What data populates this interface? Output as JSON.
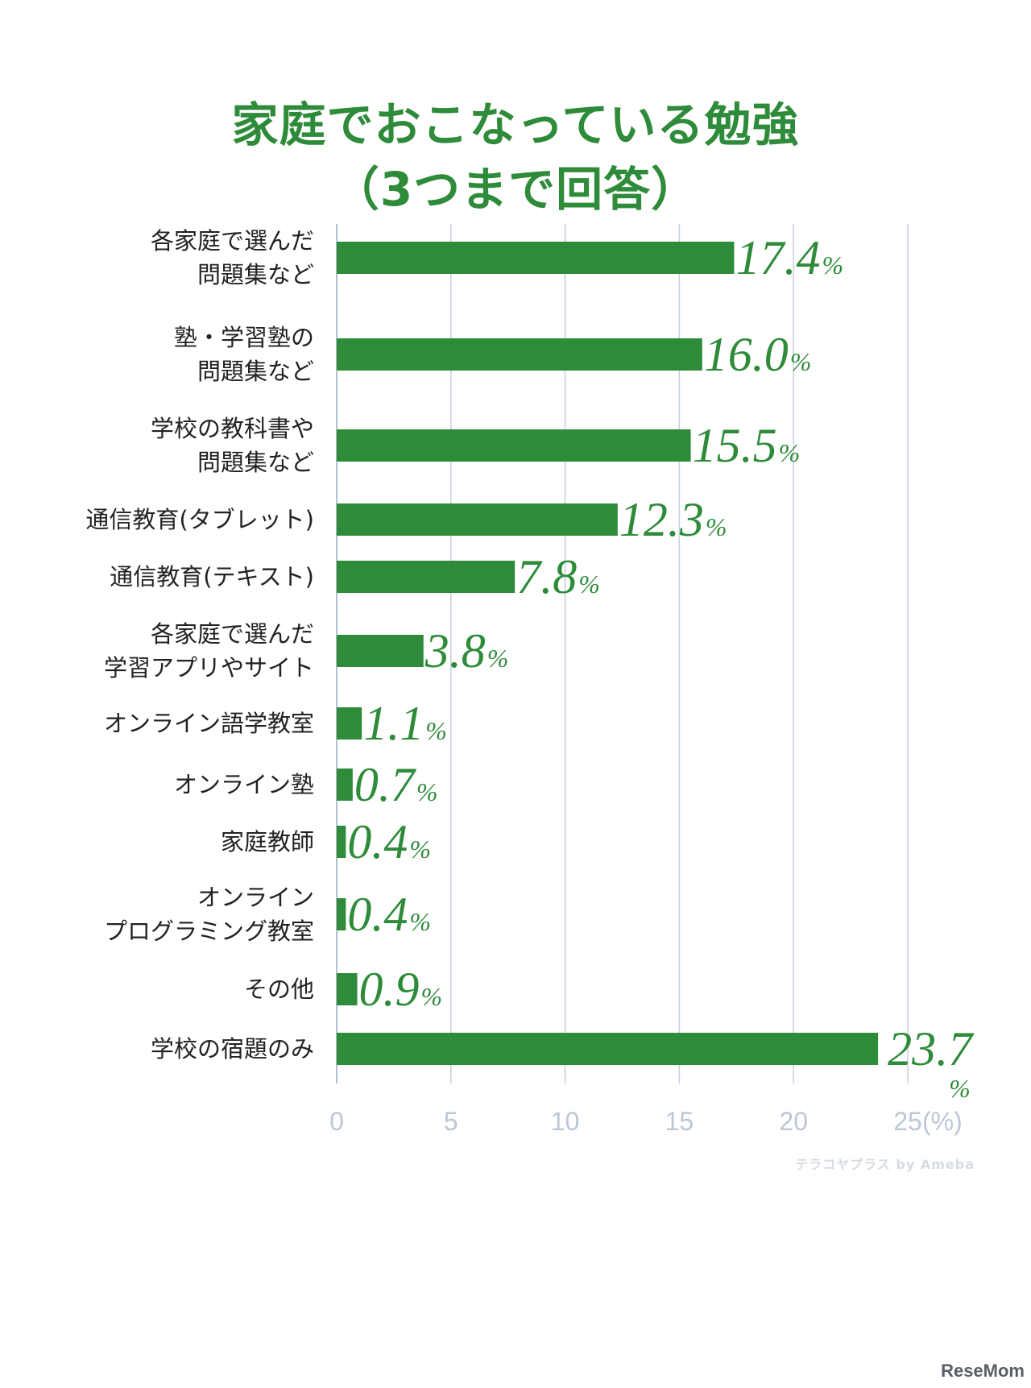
{
  "header": {
    "title_line1": "家庭でおこなっている勉強",
    "title_line2": "（3つまで回答）"
  },
  "chart_data": {
    "type": "bar",
    "orientation": "horizontal",
    "title": "家庭でおこなっている勉強（3つまで回答）",
    "xlabel": "(%)",
    "ylabel": "",
    "xlim": [
      0,
      25
    ],
    "xticks": [
      0,
      5,
      10,
      15,
      20,
      25
    ],
    "x_unit": "(%)",
    "grid": true,
    "bar_color": "#2e8b3a",
    "categories": [
      [
        "各家庭で選んだ",
        "問題集など"
      ],
      [
        "塾・学習塾の",
        "問題集など"
      ],
      [
        "学校の教科書や",
        "問題集など"
      ],
      [
        "通信教育(タブレット)"
      ],
      [
        "通信教育(テキスト)"
      ],
      [
        "各家庭で選んだ",
        "学習アプリやサイト"
      ],
      [
        "オンライン語学教室"
      ],
      [
        "オンライン塾"
      ],
      [
        "家庭教師"
      ],
      [
        "オンライン",
        "プログラミング教室"
      ],
      [
        "その他"
      ],
      [
        "学校の宿題のみ"
      ]
    ],
    "values": [
      17.4,
      16.0,
      15.5,
      12.3,
      7.8,
      3.8,
      1.1,
      0.7,
      0.4,
      0.4,
      0.9,
      23.7
    ],
    "value_labels": [
      "17.4",
      "16.0",
      "15.5",
      "12.3",
      "7.8",
      "3.8",
      "1.1",
      "0.7",
      "0.4",
      "0.4",
      "0.9",
      "23.7"
    ],
    "value_suffix": "%"
  },
  "footer": {
    "credit": "テラコヤプラス by Ameba",
    "brand": "ReseMom"
  }
}
